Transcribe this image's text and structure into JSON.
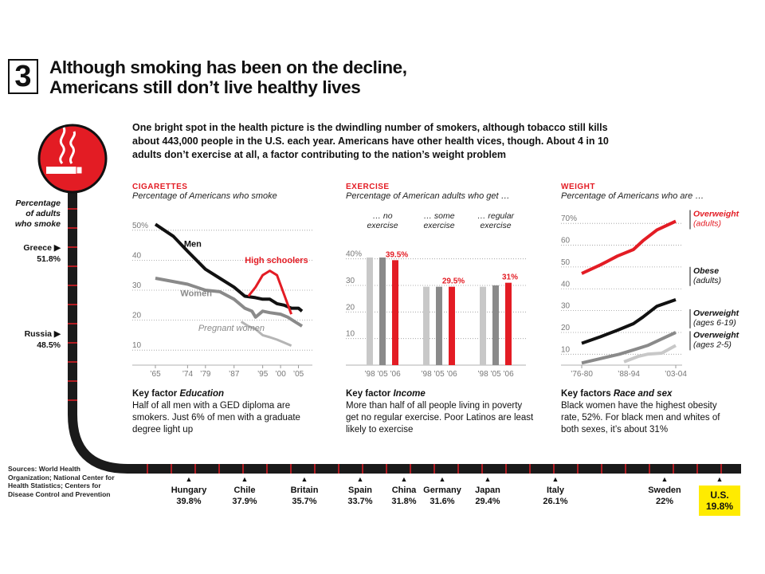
{
  "header": {
    "number": "3",
    "title_line1": "Although smoking has been on the decline,",
    "title_line2": "Americans still don’t live healthy lives"
  },
  "intro": "One bright spot in the health picture is the dwindling number of smokers, although tobacco still kills about 443,000 people in the U.S. each year. Americans have other health vices, though. About 4 in 10 adults don’t exercise at all, a factor contributing to the nation’s weight problem",
  "colors": {
    "accent": "#e31c24",
    "dark": "#111111",
    "mid_gray": "#8a8a8a",
    "light_gray": "#c8c8c8",
    "highlight": "#ffeb00"
  },
  "icon": "no-smoking-cigarette-icon",
  "side_label": [
    "Percentage",
    "of adults",
    "who smoke"
  ],
  "timeline": {
    "left": [
      {
        "name": "Greece",
        "value": "51.8%"
      },
      {
        "name": "Russia",
        "value": "48.5%"
      }
    ],
    "bottom": [
      {
        "name": "Hungary",
        "value": "39.8%"
      },
      {
        "name": "Chile",
        "value": "37.9%"
      },
      {
        "name": "Britain",
        "value": "35.7%"
      },
      {
        "name": "Spain",
        "value": "33.7%"
      },
      {
        "name": "China",
        "value": "31.8%"
      },
      {
        "name": "Germany",
        "value": "31.6%"
      },
      {
        "name": "Japan",
        "value": "29.4%"
      },
      {
        "name": "Italy",
        "value": "26.1%"
      },
      {
        "name": "Sweden",
        "value": "22%"
      },
      {
        "name": "U.S.",
        "value": "19.8%"
      }
    ]
  },
  "sources": "Sources: World Health Organization; National Center for Health Statistics; Centers for Disease Control and Prevention",
  "panels": {
    "cigarettes": {
      "title": "CIGARETTES",
      "subtitle": "Percentage of Americans who smoke",
      "key_label": "Key factor",
      "key_factor": "Education",
      "key_text": "Half of all men with a GED diploma are smokers. Just 6% of men with a graduate degree light up"
    },
    "exercise": {
      "title": "EXERCISE",
      "subtitle": "Percentage of American adults who get …",
      "key_label": "Key factor",
      "key_factor": "Income",
      "key_text": "More than half of all people living in poverty get no regular exercise. Poor Latinos are least likely to exercise"
    },
    "weight": {
      "title": "WEIGHT",
      "subtitle": "Percentage of Americans who are …",
      "key_label": "Key factors",
      "key_factor": "Race and sex",
      "key_text": "Black women have the highest obesity rate, 52%. For black men and whites of both sexes, it’s about 31%"
    }
  },
  "chart_data": [
    {
      "type": "line",
      "yticks": [
        "50%",
        "40",
        "30",
        "20",
        "10"
      ],
      "ytick_values": [
        50,
        40,
        30,
        20,
        10
      ],
      "ylim": [
        5,
        55
      ],
      "xticks": [
        "’65",
        "’74",
        "’79",
        "’87",
        "’95",
        "’00",
        "’05"
      ],
      "xtick_values": [
        1965,
        1974,
        1979,
        1987,
        1995,
        2000,
        2005
      ],
      "xlim": [
        1963,
        2008
      ],
      "series": [
        {
          "name": "Men",
          "color": "#111111",
          "points": [
            [
              1965,
              52
            ],
            [
              1970,
              48
            ],
            [
              1974,
              43
            ],
            [
              1979,
              37
            ],
            [
              1983,
              34
            ],
            [
              1987,
              31
            ],
            [
              1990,
              28
            ],
            [
              1993,
              27.5
            ],
            [
              1995,
              27
            ],
            [
              1997,
              27
            ],
            [
              1999,
              25.5
            ],
            [
              2001,
              25
            ],
            [
              2003,
              24
            ],
            [
              2005,
              24
            ],
            [
              2006,
              23
            ]
          ]
        },
        {
          "name": "Women",
          "color": "#8a8a8a",
          "points": [
            [
              1965,
              34
            ],
            [
              1974,
              32
            ],
            [
              1979,
              30
            ],
            [
              1983,
              29.5
            ],
            [
              1987,
              27
            ],
            [
              1990,
              24
            ],
            [
              1992,
              23
            ],
            [
              1993,
              21
            ],
            [
              1995,
              23
            ],
            [
              1997,
              22.5
            ],
            [
              2000,
              22
            ],
            [
              2002,
              21
            ],
            [
              2004,
              19.5
            ],
            [
              2006,
              18
            ]
          ]
        },
        {
          "name": "Pregnant women",
          "color": "#b5b5b5",
          "points": [
            [
              1989,
              19.5
            ],
            [
              1991,
              18
            ],
            [
              1993,
              17
            ],
            [
              1995,
              15
            ],
            [
              1997,
              14.3
            ],
            [
              1999,
              13.5
            ],
            [
              2001,
              12.5
            ],
            [
              2003,
              11.5
            ]
          ]
        },
        {
          "name": "High schoolers",
          "color": "#e31c24",
          "points": [
            [
              1991,
              28
            ],
            [
              1993,
              31
            ],
            [
              1995,
              35
            ],
            [
              1997,
              36.5
            ],
            [
              1999,
              35
            ],
            [
              2001,
              28.5
            ],
            [
              2003,
              22
            ]
          ]
        }
      ]
    },
    {
      "type": "bar",
      "yticks": [
        "40%",
        "30",
        "20",
        "10"
      ],
      "ytick_values": [
        40,
        30,
        20,
        10
      ],
      "ylim": [
        0,
        45
      ],
      "groups": [
        "… no exercise",
        "… some exercise",
        "… regular exercise"
      ],
      "categories": [
        "’98",
        "’05",
        "’06"
      ],
      "series": [
        {
          "name": "… no exercise",
          "values": [
            40.5,
            40.5,
            39.5
          ],
          "labels": [
            "",
            "",
            "39.5%"
          ]
        },
        {
          "name": "… some exercise",
          "values": [
            29.5,
            29.5,
            29.5
          ],
          "labels": [
            "",
            "",
            "29.5%"
          ]
        },
        {
          "name": "… regular exercise",
          "values": [
            29.5,
            30,
            31
          ],
          "labels": [
            "",
            "",
            "31%"
          ]
        }
      ]
    },
    {
      "type": "line",
      "yticks": [
        "70%",
        "60",
        "50",
        "40",
        "30",
        "20",
        "10"
      ],
      "ytick_values": [
        70,
        60,
        50,
        40,
        30,
        20,
        10
      ],
      "ylim": [
        5,
        73
      ],
      "xticks": [
        "’76-80",
        "’88-94",
        "’03-04"
      ],
      "xtick_positions": [
        0,
        0.5,
        1
      ],
      "series": [
        {
          "name": "Overweight (adults)",
          "color": "#e31c24",
          "points": [
            [
              0,
              47
            ],
            [
              0.2,
              51
            ],
            [
              0.38,
              55
            ],
            [
              0.55,
              58
            ],
            [
              0.65,
              62
            ],
            [
              0.8,
              67
            ],
            [
              1,
              71
            ]
          ]
        },
        {
          "name": "Obese (adults)",
          "color": "#111111",
          "points": [
            [
              0,
              15
            ],
            [
              0.2,
              18
            ],
            [
              0.38,
              21
            ],
            [
              0.55,
              24
            ],
            [
              0.65,
              27
            ],
            [
              0.8,
              32
            ],
            [
              1,
              35
            ]
          ]
        },
        {
          "name": "Overweight (ages 6-19)",
          "color": "#8a8a8a",
          "points": [
            [
              0,
              6
            ],
            [
              0.2,
              8
            ],
            [
              0.4,
              10
            ],
            [
              0.55,
              12
            ],
            [
              0.7,
              14
            ],
            [
              0.85,
              17
            ],
            [
              1,
              20
            ]
          ]
        },
        {
          "name": "Overweight (ages 2-5)",
          "color": "#c8c8c8",
          "points": [
            [
              0.45,
              6.5
            ],
            [
              0.6,
              9
            ],
            [
              0.7,
              10
            ],
            [
              0.85,
              10.5
            ],
            [
              1,
              14
            ]
          ]
        }
      ],
      "series_labels": {
        "Overweight (adults)": [
          "Overweight",
          "(adults)"
        ],
        "Obese (adults)": [
          "Obese",
          "(adults)"
        ],
        "Overweight (ages 6-19)": [
          "Overweight",
          "(ages 6-19)"
        ],
        "Overweight (ages 2-5)": [
          "Overweight",
          "(ages 2-5)"
        ]
      }
    }
  ]
}
